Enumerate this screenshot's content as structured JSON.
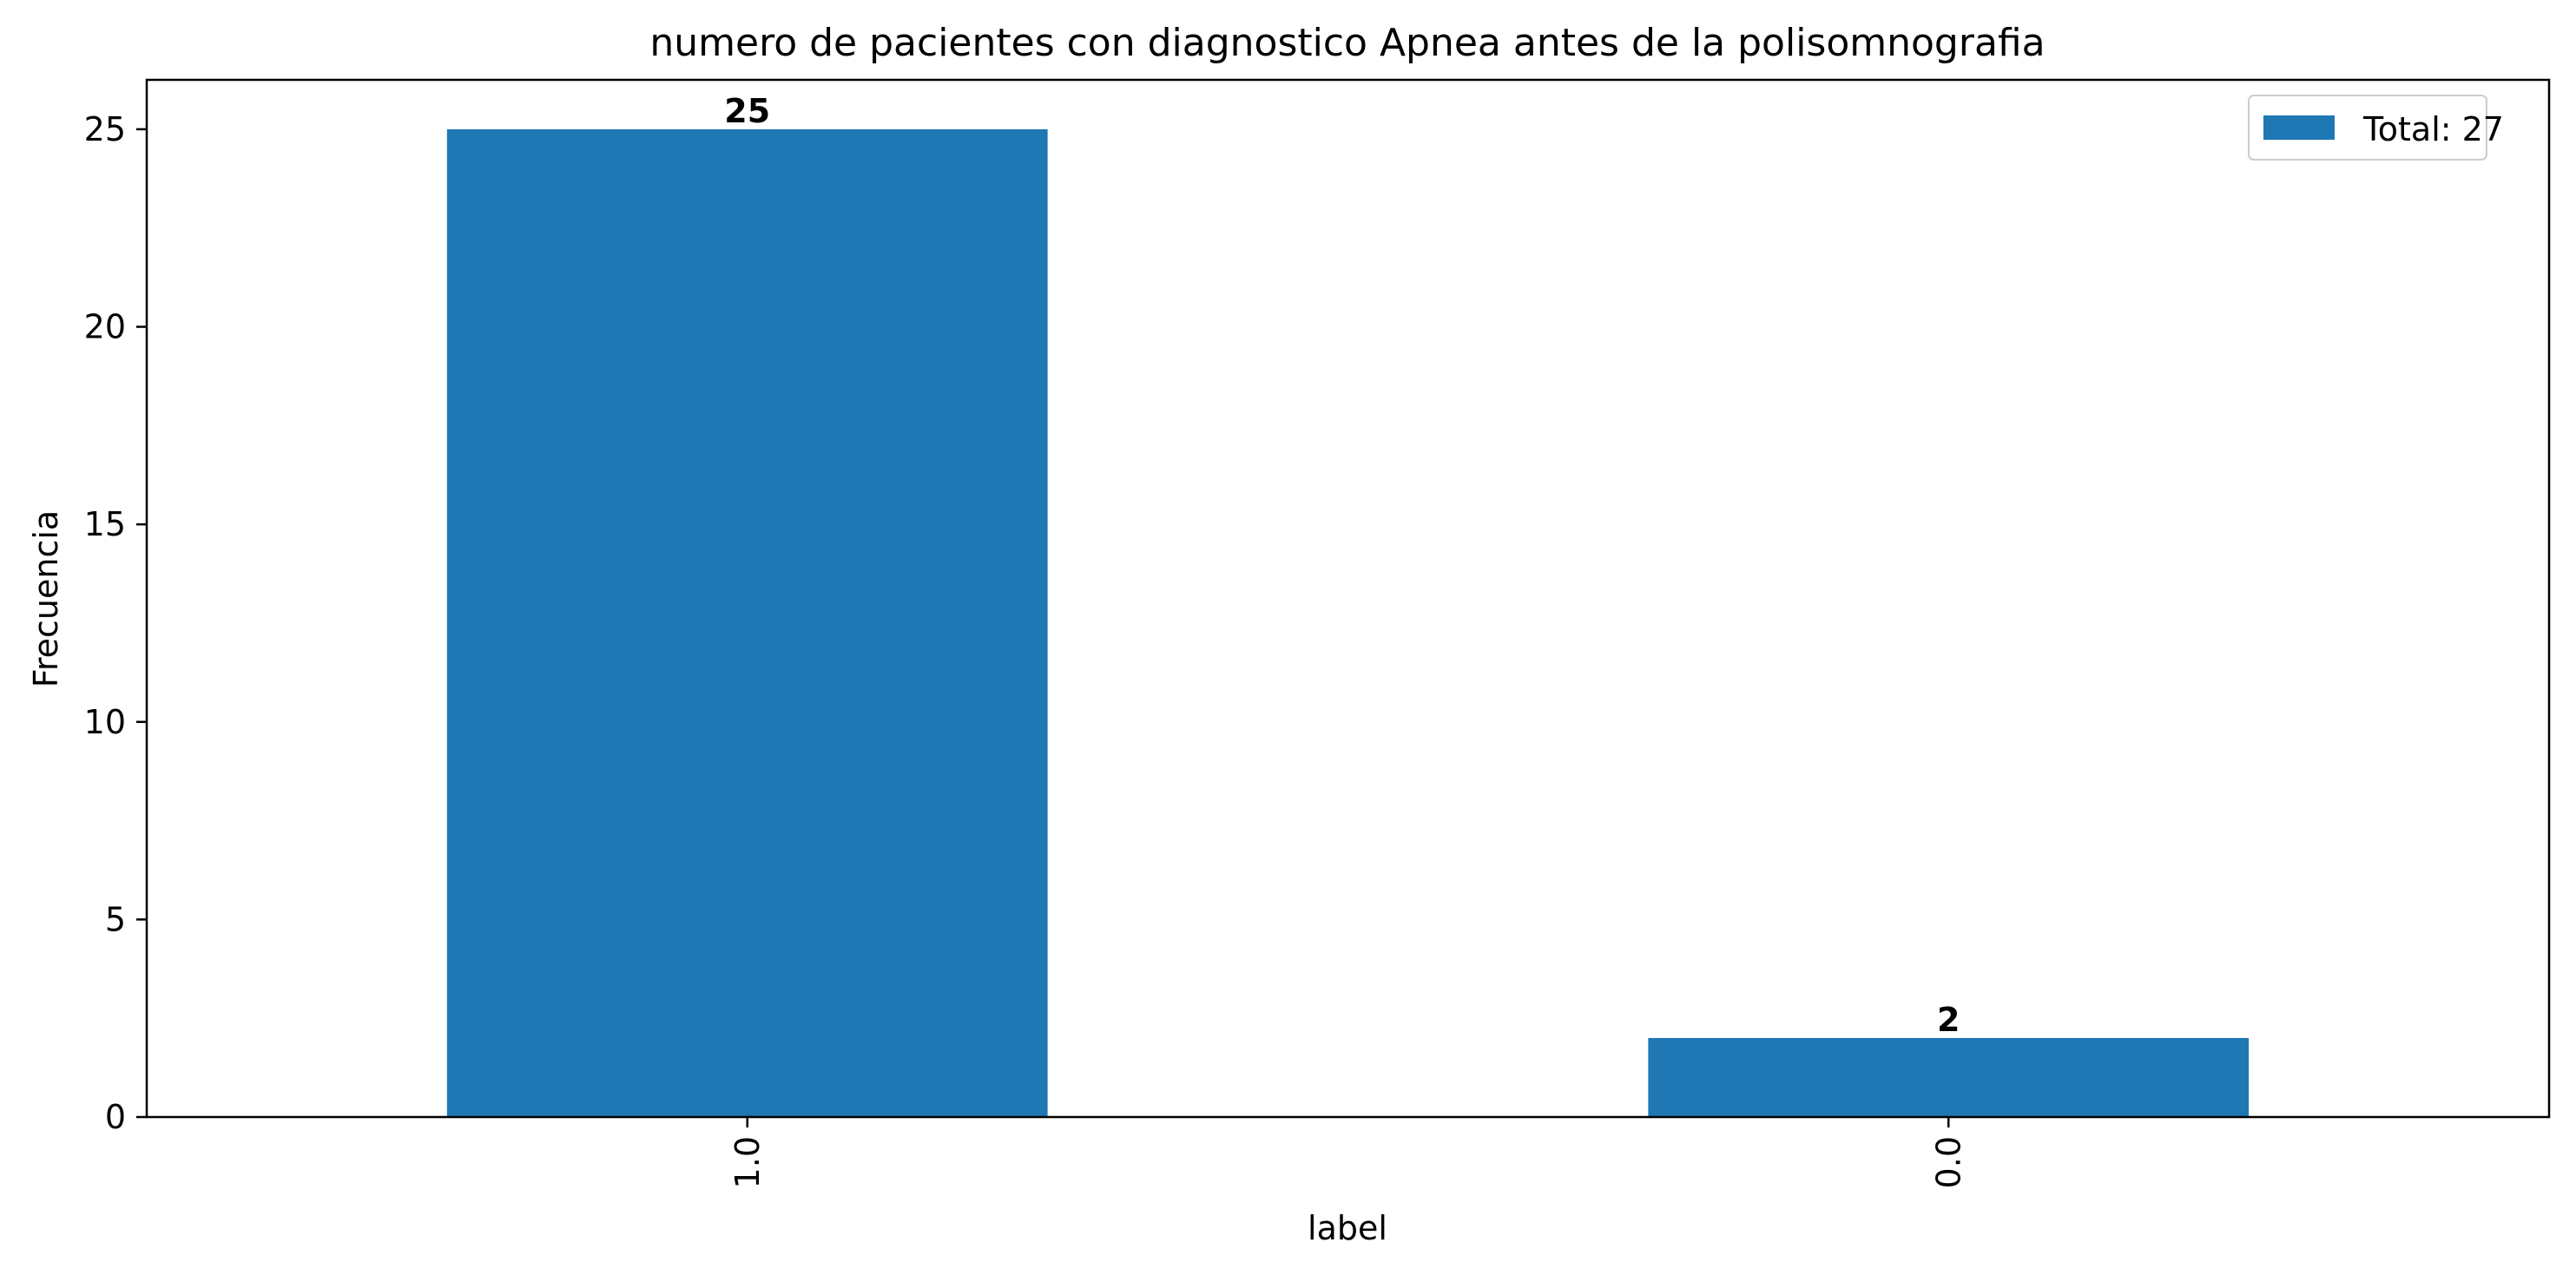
{
  "chart_data": {
    "type": "bar",
    "title": "numero de pacientes con diagnostico Apnea antes de la polisomnografia",
    "xlabel": "label",
    "ylabel": "Frecuencia",
    "categories": [
      "1.0",
      "0.0"
    ],
    "series": [
      {
        "name": "Total: 27",
        "values": [
          25,
          2
        ],
        "color": "#1f77b4"
      }
    ],
    "data_labels": [
      "25",
      "2"
    ],
    "ylim": [
      0,
      26.25
    ],
    "yticks": [
      0,
      5,
      10,
      15,
      20,
      25
    ],
    "ytick_labels": [
      "0",
      "5",
      "10",
      "15",
      "20",
      "25"
    ],
    "grid": false,
    "legend_position": "top-right",
    "x_tick_rotation": "vertical"
  }
}
